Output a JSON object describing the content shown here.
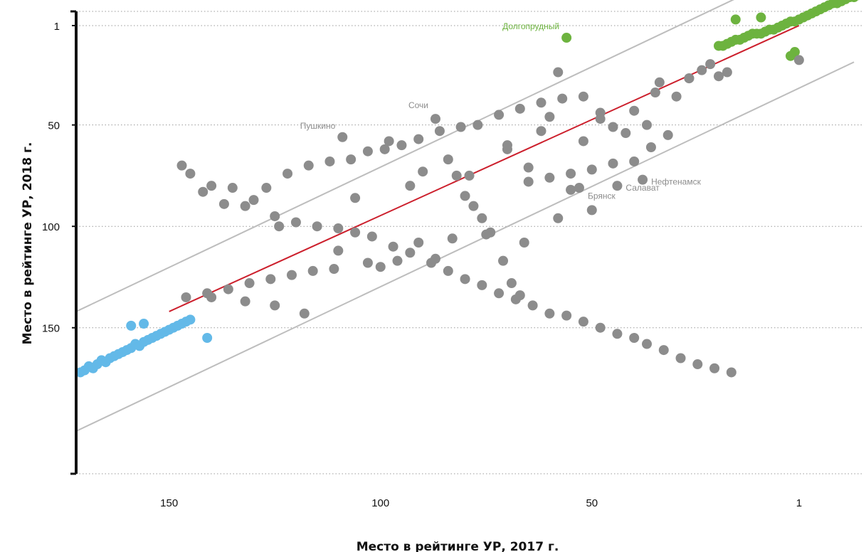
{
  "chart_data": {
    "type": "scatter",
    "xlabel": "Место в рейтинге УР, 2017 г.",
    "ylabel": "Место в рейтинге УР, 2018 г.",
    "x_reversed": true,
    "y_reversed": true,
    "xlim": [
      172,
      -14
    ],
    "ylim": [
      -6,
      222
    ],
    "grid": "horizontal-dotted",
    "xticks": [
      {
        "value": 150,
        "label": "150"
      },
      {
        "value": 100,
        "label": "100"
      },
      {
        "value": 50,
        "label": "50"
      },
      {
        "value": 1,
        "label": "1"
      }
    ],
    "yticks": [
      {
        "value": 1,
        "label": "1"
      },
      {
        "value": 50,
        "label": "50"
      },
      {
        "value": 100,
        "label": "100"
      },
      {
        "value": 150,
        "label": "150"
      }
    ],
    "ygrid": [
      -6,
      1,
      50,
      100,
      150,
      222
    ],
    "colors": {
      "top": "#6db33f",
      "middle": "#8c8c8c",
      "bottom": "#63b9e8",
      "trend": "#cc1f2c",
      "band": "#bdbdbd",
      "axis": "#111111",
      "grid": "#9a9a9a"
    },
    "trend_line": [
      [
        150,
        142
      ],
      [
        1,
        1
      ]
    ],
    "band_lines": [
      [
        [
          172,
          142
        ],
        [
          -12,
          -40
        ]
      ],
      [
        [
          172,
          201
        ],
        [
          -12,
          19
        ]
      ]
    ],
    "annotations": [
      {
        "text": "Долгопрудный",
        "x": 56,
        "y": 7,
        "color": "#6db33f",
        "anchor": "end"
      },
      {
        "text": "Сочи",
        "x": 87,
        "y": 46,
        "color": "#8c8c8c",
        "anchor": "end"
      },
      {
        "text": "Пушкино",
        "x": 109,
        "y": 56,
        "color": "#8c8c8c",
        "anchor": "end"
      },
      {
        "text": "Нефтенамск",
        "x": 38,
        "y": 78,
        "color": "#8c8c8c",
        "anchor": "start"
      },
      {
        "text": "Брянск",
        "x": 53,
        "y": 85,
        "color": "#8c8c8c",
        "anchor": "start"
      },
      {
        "text": "Салават",
        "x": 44,
        "y": 81,
        "color": "#8c8c8c",
        "anchor": "start"
      }
    ],
    "series": [
      {
        "group": "top",
        "color": "#6db33f",
        "x": [
          -13,
          -12,
          -11,
          -10,
          -9,
          -8,
          -7,
          -6,
          -5,
          -4,
          -3,
          -2,
          -1,
          0,
          1,
          2,
          3,
          4,
          5,
          6,
          7,
          8,
          9,
          10,
          11,
          12,
          13,
          14,
          15,
          16,
          17,
          18,
          19,
          20,
          16,
          10,
          2,
          3,
          56
        ],
        "y": [
          -14,
          -13,
          -13,
          -12,
          -11,
          -10,
          -10,
          -9,
          -8,
          -7,
          -6,
          -5,
          -4,
          -3,
          -2,
          -1,
          -1,
          0,
          1,
          2,
          3,
          3,
          4,
          5,
          5,
          5,
          6,
          7,
          8,
          8,
          9,
          10,
          11,
          11,
          -2,
          -3,
          14,
          16,
          7
        ]
      },
      {
        "group": "middle",
        "color": "#8c8c8c",
        "x": [
          87,
          109,
          98,
          90,
          84,
          82,
          80,
          78,
          76,
          74,
          71,
          69,
          67,
          62,
          58,
          55,
          52,
          48,
          45,
          42,
          40,
          37,
          34,
          30,
          27,
          24,
          22,
          20,
          18,
          27,
          35,
          48,
          60,
          70,
          65,
          60,
          55,
          50,
          45,
          40,
          36,
          32,
          52,
          57,
          62,
          67,
          72,
          77,
          81,
          86,
          91,
          95,
          99,
          103,
          107,
          112,
          117,
          122,
          127,
          132,
          137,
          142,
          147,
          145,
          140,
          135,
          130,
          125,
          120,
          115,
          110,
          106,
          102,
          97,
          93,
          88,
          84,
          80,
          76,
          72,
          68,
          64,
          60,
          56,
          52,
          48,
          44,
          40,
          37,
          33,
          29,
          25,
          21,
          17,
          1,
          38,
          53,
          44,
          106,
          93,
          70,
          65,
          79,
          118,
          125,
          132,
          140,
          87,
          96,
          103,
          111,
          116,
          121,
          126,
          131,
          136,
          141,
          146,
          124,
          110,
          100,
          91,
          83,
          75,
          66,
          58,
          50
        ],
        "y": [
          47,
          56,
          58,
          73,
          67,
          75,
          85,
          90,
          96,
          103,
          117,
          128,
          134,
          53,
          24,
          82,
          58,
          44,
          51,
          54,
          43,
          50,
          29,
          36,
          27,
          23,
          20,
          26,
          24,
          27,
          34,
          47,
          46,
          62,
          71,
          76,
          74,
          72,
          69,
          68,
          61,
          55,
          36,
          37,
          39,
          42,
          45,
          50,
          51,
          53,
          57,
          60,
          62,
          63,
          67,
          68,
          70,
          74,
          81,
          90,
          89,
          83,
          70,
          74,
          80,
          81,
          87,
          95,
          98,
          100,
          101,
          103,
          105,
          110,
          113,
          118,
          122,
          126,
          129,
          133,
          136,
          139,
          143,
          144,
          147,
          150,
          153,
          155,
          158,
          161,
          165,
          168,
          170,
          172,
          18,
          77,
          81,
          80,
          86,
          80,
          60,
          78,
          75,
          143,
          139,
          137,
          135,
          116,
          117,
          118,
          121,
          122,
          124,
          126,
          128,
          131,
          133,
          135,
          100,
          112,
          120,
          108,
          106,
          104,
          108,
          96,
          92
        ]
      },
      {
        "group": "bottom",
        "color": "#63b9e8",
        "x": [
          171,
          170,
          169,
          168,
          167,
          166,
          165,
          164,
          163,
          162,
          161,
          160,
          159,
          158,
          157,
          156,
          155,
          154,
          153,
          152,
          151,
          150,
          149,
          148,
          147,
          146,
          145,
          159,
          156,
          141
        ],
        "y": [
          172,
          171,
          169,
          170,
          168,
          166,
          167,
          165,
          164,
          163,
          162,
          161,
          160,
          158,
          159,
          157,
          156,
          155,
          154,
          153,
          152,
          151,
          150,
          149,
          148,
          147,
          146,
          149,
          148,
          155
        ]
      }
    ]
  }
}
